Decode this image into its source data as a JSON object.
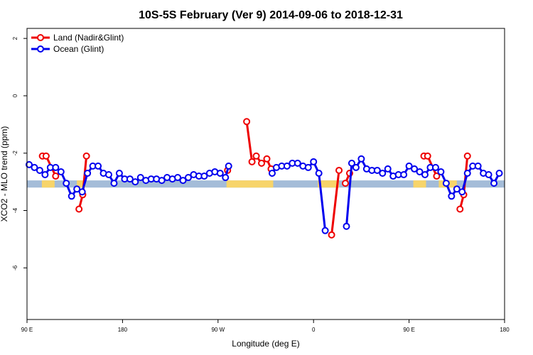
{
  "chart_data": {
    "type": "line",
    "title": "10S-5S February (Ver 9)   2014-09-06 to 2018-12-31",
    "xlabel": "Longitude (deg E)",
    "ylabel": "XCO2 - MLO trend (ppm)",
    "xlim": [
      90,
      540
    ],
    "ylim": [
      -7.8,
      2.35
    ],
    "x_ticks": [
      {
        "value": 90,
        "label": "90 E"
      },
      {
        "value": 180,
        "label": "180"
      },
      {
        "value": 270,
        "label": "90 W"
      },
      {
        "value": 360,
        "label": "0"
      },
      {
        "value": 450,
        "label": "90 E"
      },
      {
        "value": 540,
        "label": "180"
      }
    ],
    "y_ticks": [
      {
        "value": 2,
        "label": "2"
      },
      {
        "value": 0,
        "label": "0"
      },
      {
        "value": -2,
        "label": "-2"
      },
      {
        "value": -4,
        "label": "-4"
      },
      {
        "value": -6,
        "label": "-6"
      }
    ],
    "grid": false,
    "legend_position": "top-left",
    "background_band": {
      "y_range": [
        -3.2,
        -2.95
      ],
      "water_color": "#a4bcd8",
      "land_color": "#f7d46a",
      "land_x_ranges": [
        [
          104,
          116
        ],
        [
          137,
          145
        ],
        [
          278,
          322
        ],
        [
          364,
          384
        ],
        [
          454,
          466
        ],
        [
          478,
          495
        ]
      ]
    },
    "series": [
      {
        "name": "Land (Nadir&Glint)",
        "color": "#ee0000",
        "segments": [
          [
            [
              104.5,
              -2.1
            ],
            [
              108,
              -2.1
            ],
            [
              117,
              -2.8
            ]
          ],
          [
            [
              139,
              -3.95
            ],
            [
              142.5,
              -3.45
            ],
            [
              146,
              -2.1
            ]
          ],
          [
            [
              279,
              -2.6
            ]
          ],
          [
            [
              297,
              -0.9
            ],
            [
              302,
              -2.3
            ],
            [
              306,
              -2.1
            ],
            [
              311,
              -2.35
            ],
            [
              316,
              -2.2
            ],
            [
              320,
              -2.55
            ]
          ],
          [
            [
              377,
              -4.85
            ],
            [
              384,
              -2.6
            ]
          ],
          [
            [
              390,
              -3.05
            ],
            [
              394,
              -2.7
            ]
          ],
          [
            [
              464,
              -2.1
            ],
            [
              467.5,
              -2.1
            ],
            [
              476,
              -2.8
            ]
          ],
          [
            [
              498,
              -3.95
            ],
            [
              501.5,
              -3.45
            ],
            [
              505,
              -2.1
            ]
          ]
        ]
      },
      {
        "name": "Ocean (Glint)",
        "color": "#0000ee",
        "segments": [
          [
            [
              92,
              -2.4
            ],
            [
              97,
              -2.5
            ],
            [
              102,
              -2.6
            ],
            [
              107,
              -2.75
            ],
            [
              112,
              -2.5
            ],
            [
              117,
              -2.5
            ],
            [
              122,
              -2.65
            ],
            [
              127,
              -3.05
            ],
            [
              132,
              -3.5
            ],
            [
              137,
              -3.25
            ],
            [
              142,
              -3.35
            ],
            [
              147,
              -2.7
            ],
            [
              152,
              -2.45
            ],
            [
              157,
              -2.45
            ],
            [
              162,
              -2.7
            ],
            [
              167,
              -2.75
            ],
            [
              172,
              -3.05
            ],
            [
              177,
              -2.7
            ],
            [
              182,
              -2.9
            ],
            [
              187,
              -2.9
            ],
            [
              192,
              -3.0
            ],
            [
              197,
              -2.85
            ],
            [
              202,
              -2.95
            ],
            [
              207,
              -2.9
            ],
            [
              212,
              -2.9
            ],
            [
              217,
              -2.95
            ],
            [
              222,
              -2.85
            ],
            [
              227,
              -2.9
            ],
            [
              232,
              -2.85
            ],
            [
              237,
              -2.95
            ],
            [
              242,
              -2.85
            ],
            [
              247,
              -2.75
            ],
            [
              252,
              -2.8
            ],
            [
              257,
              -2.8
            ],
            [
              262,
              -2.7
            ],
            [
              267,
              -2.65
            ],
            [
              272,
              -2.7
            ],
            [
              277,
              -2.85
            ],
            [
              280,
              -2.45
            ]
          ],
          [
            [
              321,
              -2.7
            ],
            [
              325,
              -2.5
            ],
            [
              330,
              -2.45
            ],
            [
              335,
              -2.45
            ],
            [
              340,
              -2.35
            ],
            [
              345,
              -2.35
            ],
            [
              350,
              -2.45
            ],
            [
              355,
              -2.5
            ],
            [
              360,
              -2.3
            ],
            [
              365,
              -2.7
            ],
            [
              371,
              -4.7
            ]
          ],
          [
            [
              391,
              -4.55
            ],
            [
              396,
              -2.35
            ],
            [
              400,
              -2.5
            ],
            [
              405,
              -2.2
            ],
            [
              410,
              -2.55
            ],
            [
              415,
              -2.6
            ],
            [
              420,
              -2.6
            ],
            [
              425,
              -2.7
            ],
            [
              430,
              -2.55
            ],
            [
              435,
              -2.8
            ],
            [
              440,
              -2.75
            ],
            [
              445,
              -2.75
            ],
            [
              450,
              -2.45
            ],
            [
              455,
              -2.55
            ],
            [
              460,
              -2.65
            ],
            [
              465,
              -2.75
            ],
            [
              470,
              -2.5
            ],
            [
              475,
              -2.5
            ],
            [
              480,
              -2.65
            ],
            [
              485,
              -3.05
            ],
            [
              490,
              -3.5
            ],
            [
              495,
              -3.25
            ],
            [
              500,
              -3.35
            ],
            [
              505,
              -2.7
            ],
            [
              510,
              -2.45
            ],
            [
              515,
              -2.45
            ],
            [
              520,
              -2.7
            ],
            [
              525,
              -2.75
            ],
            [
              530,
              -3.05
            ],
            [
              535,
              -2.7
            ]
          ]
        ]
      }
    ]
  }
}
